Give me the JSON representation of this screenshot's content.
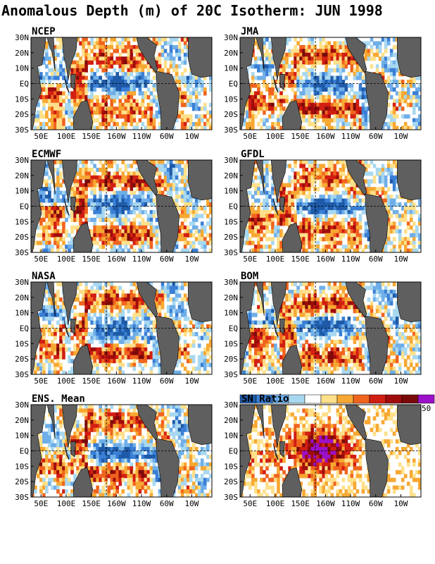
{
  "title": "Anomalous Depth (m) of 20C Isotherm: JUN 1998",
  "colors": {
    "land": "#5f5f5f",
    "grid_dash": "#000000",
    "anomaly_scale": [
      "#1e5aa8",
      "#3a7fd5",
      "#6faee8",
      "#a8d8f0",
      "#ffffff",
      "#ffe08a",
      "#f7a833",
      "#f0641e",
      "#d21e12",
      "#a00c0c",
      "#7a0a0a"
    ],
    "sn_scale": [
      "#ffffff",
      "#ffe08a",
      "#f7a833",
      "#f0641e",
      "#d21e12",
      "#a00c0c",
      "#7a0a0a",
      "#9b10c8"
    ]
  },
  "chart_data": [
    {
      "type": "heatmap",
      "title": "NCEP",
      "xlabel": "",
      "ylabel": "",
      "x_ticks": [
        "50E",
        "100E",
        "150E",
        "160W",
        "110W",
        "60W",
        "10W"
      ],
      "y_ticks": [
        "30N",
        "20N",
        "10N",
        "EQ",
        "10S",
        "20S",
        "30S"
      ],
      "ylim": [
        "30S",
        "30N"
      ]
    },
    {
      "type": "heatmap",
      "title": "JMA",
      "xlabel": "",
      "ylabel": "",
      "x_ticks": [
        "50E",
        "100E",
        "150E",
        "160W",
        "110W",
        "60W",
        "10W"
      ],
      "y_ticks": [
        "30N",
        "20N",
        "10N",
        "EQ",
        "10S",
        "20S",
        "30S"
      ],
      "ylim": [
        "30S",
        "30N"
      ]
    },
    {
      "type": "heatmap",
      "title": "ECMWF",
      "xlabel": "",
      "ylabel": "",
      "x_ticks": [
        "50E",
        "100E",
        "150E",
        "160W",
        "110W",
        "60W",
        "10W"
      ],
      "y_ticks": [
        "30N",
        "20N",
        "10N",
        "EQ",
        "10S",
        "20S",
        "30S"
      ],
      "ylim": [
        "30S",
        "30N"
      ]
    },
    {
      "type": "heatmap",
      "title": "GFDL",
      "xlabel": "",
      "ylabel": "",
      "x_ticks": [
        "50E",
        "100E",
        "150E",
        "160W",
        "110W",
        "60W",
        "10W"
      ],
      "y_ticks": [
        "30N",
        "20N",
        "10N",
        "EQ",
        "10S",
        "20S",
        "30S"
      ],
      "ylim": [
        "30S",
        "30N"
      ]
    },
    {
      "type": "heatmap",
      "title": "NASA",
      "xlabel": "",
      "ylabel": "",
      "x_ticks": [
        "50E",
        "100E",
        "150E",
        "160W",
        "110W",
        "60W",
        "10W"
      ],
      "y_ticks": [
        "30N",
        "20N",
        "10N",
        "EQ",
        "10S",
        "20S",
        "30S"
      ],
      "ylim": [
        "30S",
        "30N"
      ]
    },
    {
      "type": "heatmap",
      "title": "BOM",
      "xlabel": "",
      "ylabel": "",
      "x_ticks": [
        "50E",
        "100E",
        "150E",
        "160W",
        "110W",
        "60W",
        "10W"
      ],
      "y_ticks": [
        "30N",
        "20N",
        "10N",
        "EQ",
        "10S",
        "20S",
        "30S"
      ],
      "ylim": [
        "30S",
        "30N"
      ]
    },
    {
      "type": "heatmap",
      "title": "ENS. Mean",
      "xlabel": "",
      "ylabel": "",
      "x_ticks": [
        "50E",
        "100E",
        "150E",
        "160W",
        "110W",
        "60W",
        "10W"
      ],
      "y_ticks": [
        "30N",
        "20N",
        "10N",
        "EQ",
        "10S",
        "20S",
        "30S"
      ],
      "ylim": [
        "30S",
        "30N"
      ]
    },
    {
      "type": "heatmap",
      "title": "SN Ratio",
      "xlabel": "",
      "ylabel": "",
      "x_ticks": [
        "50E",
        "100E",
        "150E",
        "160W",
        "110W",
        "60W",
        "10W"
      ],
      "y_ticks": [
        "30N",
        "20N",
        "10N",
        "EQ",
        "10S",
        "20S",
        "30S"
      ],
      "ylim": [
        "30S",
        "30N"
      ],
      "colorbar_max_label": "50"
    }
  ]
}
